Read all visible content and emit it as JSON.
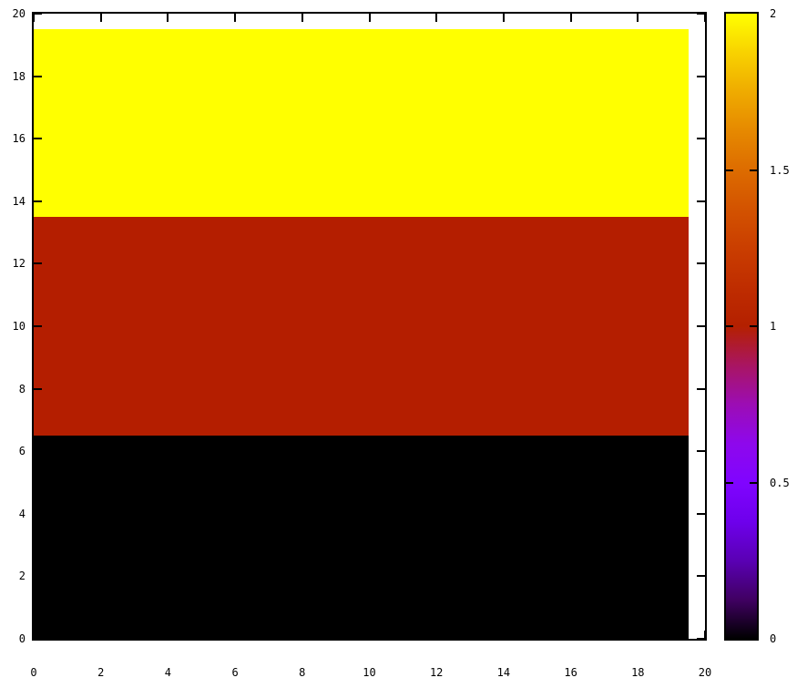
{
  "chart_data": {
    "type": "heatmap",
    "title": "",
    "xlabel": "",
    "ylabel": "",
    "xlim": [
      0,
      20
    ],
    "ylim": [
      0,
      20
    ],
    "x_tick_labels": [
      "0",
      "2",
      "4",
      "6",
      "8",
      "10",
      "12",
      "14",
      "16",
      "18",
      "20"
    ],
    "x_tick_values": [
      0,
      2,
      4,
      6,
      8,
      10,
      12,
      14,
      16,
      18,
      20
    ],
    "y_tick_labels": [
      "0",
      "2",
      "4",
      "6",
      "8",
      "10",
      "12",
      "14",
      "16",
      "18",
      "20"
    ],
    "y_tick_values": [
      0,
      2,
      4,
      6,
      8,
      10,
      12,
      14,
      16,
      18,
      20
    ],
    "grid": false,
    "ticks_mirrored_inward": true,
    "data_extent": {
      "x": [
        0,
        19.5
      ],
      "y": [
        0,
        19.5
      ]
    },
    "bands": [
      {
        "value": 0,
        "rows": "0-6",
        "y_from": 0,
        "y_to": 6.5,
        "color": "#000000"
      },
      {
        "value": 1,
        "rows": "7-13",
        "y_from": 6.5,
        "y_to": 13.5,
        "color": "#b41e00"
      },
      {
        "value": 2,
        "rows": "14-19",
        "y_from": 13.5,
        "y_to": 19.5,
        "color": "#ffff00"
      }
    ],
    "colorbar": {
      "range": [
        0,
        2
      ],
      "tick_values": [
        0,
        0.5,
        1,
        1.5,
        2
      ],
      "tick_labels": [
        "0",
        "0.5",
        "1",
        "1.5",
        "2"
      ],
      "inner_tick_values": [
        0.5,
        1,
        1.5
      ],
      "palette_name": "gnuplot-pm3d-traditional-black-blue-red-yellow",
      "palette_stops": [
        {
          "at": 0.0,
          "color": "#000000"
        },
        {
          "at": 0.0625,
          "color": "#400062"
        },
        {
          "at": 0.125,
          "color": "#5a00b4"
        },
        {
          "at": 0.1875,
          "color": "#6e00ec"
        },
        {
          "at": 0.25,
          "color": "#8004ff"
        },
        {
          "at": 0.3125,
          "color": "#8e08ec"
        },
        {
          "at": 0.375,
          "color": "#9c0db4"
        },
        {
          "at": 0.4375,
          "color": "#a91562"
        },
        {
          "at": 0.5,
          "color": "#b42000"
        },
        {
          "at": 0.5625,
          "color": "#bf2d00"
        },
        {
          "at": 0.625,
          "color": "#ca3e00"
        },
        {
          "at": 0.6875,
          "color": "#d35300"
        },
        {
          "at": 0.75,
          "color": "#dd6c00"
        },
        {
          "at": 0.8125,
          "color": "#e68900"
        },
        {
          "at": 0.875,
          "color": "#efab00"
        },
        {
          "at": 0.9375,
          "color": "#f8d200"
        },
        {
          "at": 1.0,
          "color": "#ffff00"
        }
      ]
    }
  }
}
